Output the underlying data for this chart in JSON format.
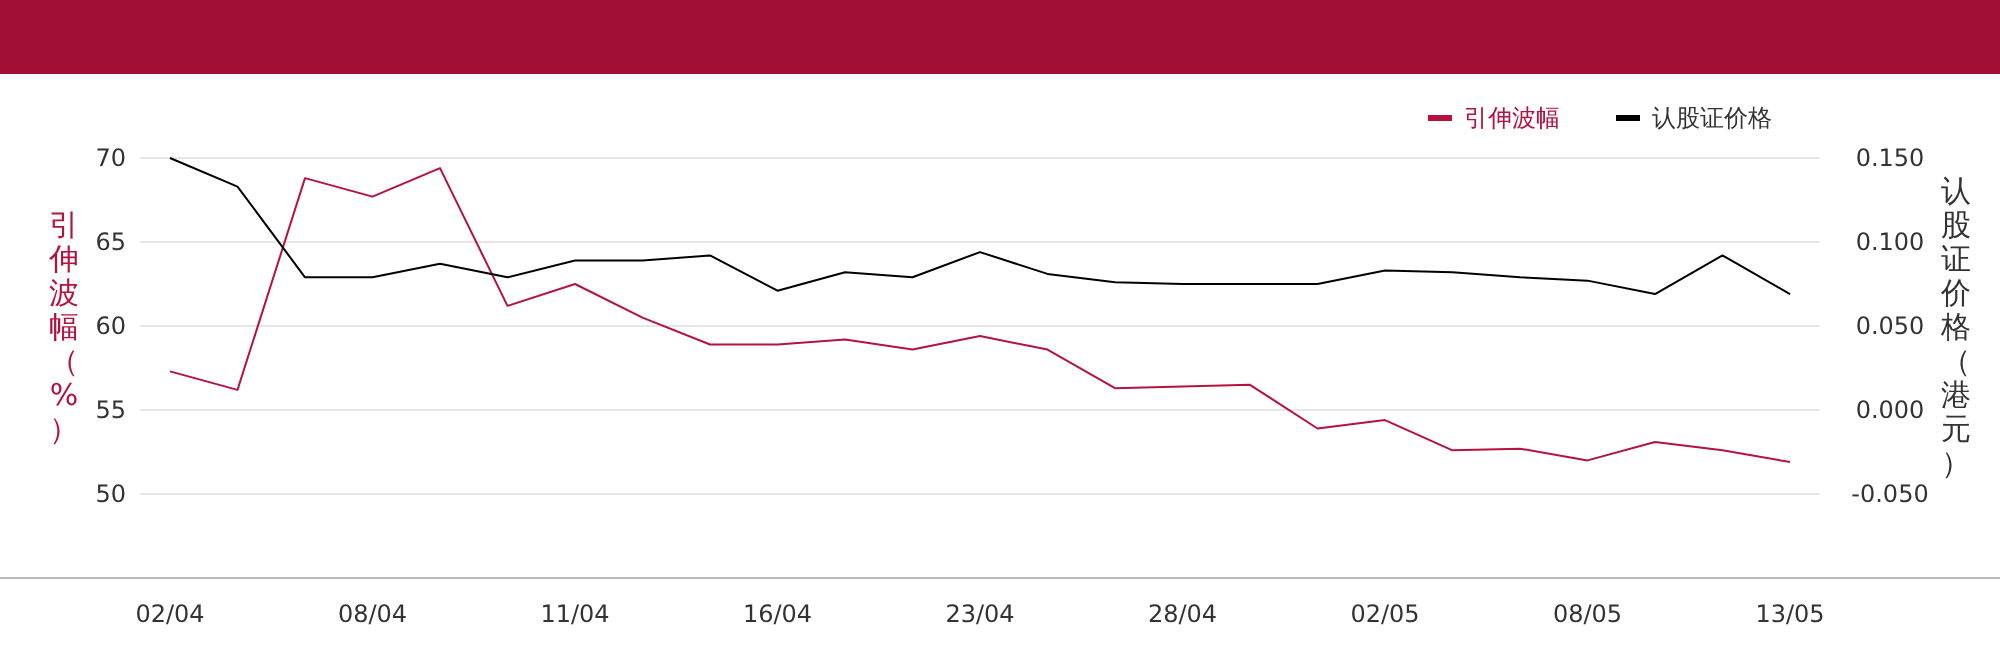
{
  "chart_data": {
    "type": "line",
    "categories": [
      "02/04",
      null,
      null,
      "08/04",
      null,
      null,
      "11/04",
      null,
      null,
      "16/04",
      null,
      null,
      "23/04",
      null,
      null,
      "28/04",
      null,
      null,
      "02/05",
      null,
      null,
      "08/05",
      null,
      null,
      "13/05"
    ],
    "ylabel": "引伸波幅（%）",
    "y2label": "认股证价格（港元）",
    "ylim": [
      50,
      70
    ],
    "yticks": [
      50,
      55,
      60,
      65,
      70
    ],
    "y2lim": [
      -0.05,
      0.15
    ],
    "y2ticks": [
      {
        "value": -0.05,
        "label": "-0.050"
      },
      {
        "value": 0,
        "label": "0.000"
      },
      {
        "value": 0.05,
        "label": "0.050"
      },
      {
        "value": 0.1,
        "label": "0.100"
      },
      {
        "value": 0.15,
        "label": "0.150"
      }
    ],
    "grid": "y",
    "legend": "top right",
    "marker": "none",
    "line_style": "solid",
    "series": [
      {
        "name": "引伸波幅",
        "color": "#b5123f",
        "values": [
          57.3,
          56.2,
          68.8,
          67.7,
          69.4,
          61.2,
          62.5,
          60.5,
          58.9,
          58.9,
          59.2,
          58.6,
          59.4,
          58.6,
          56.3,
          56.4,
          56.5,
          53.9,
          54.4,
          52.6,
          52.7,
          52.0,
          53.1,
          52.6,
          51.9
        ]
      },
      {
        "name": "认股证价格",
        "color": "#000000",
        "axis": "y2",
        "values": [
          0.15,
          0.133,
          0.079,
          0.079,
          0.087,
          0.079,
          0.089,
          0.089,
          0.092,
          0.071,
          0.082,
          0.079,
          0.094,
          0.081,
          0.076,
          0.075,
          0.075,
          0.075,
          0.083,
          0.082,
          0.079,
          0.077,
          0.069,
          0.092,
          0.069
        ]
      }
    ]
  }
}
